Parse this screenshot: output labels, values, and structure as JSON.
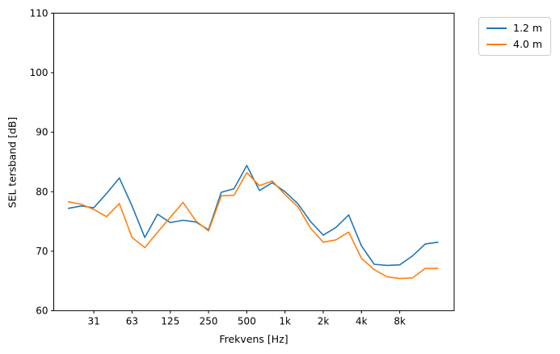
{
  "chart_data": {
    "type": "line",
    "title": "",
    "xlabel": "Frekvens [Hz]",
    "ylabel": "SEL tersband [dB]",
    "x_scale": "log-third-octave-bands",
    "grid": false,
    "legend_position": "outside-top-right",
    "background_color": "#ffffff",
    "axis_color": "#000000",
    "categories": [
      20,
      25,
      31.5,
      40,
      50,
      63,
      80,
      100,
      125,
      160,
      200,
      250,
      315,
      400,
      500,
      630,
      800,
      1000,
      1250,
      1600,
      2000,
      2500,
      3150,
      4000,
      5000,
      6300,
      8000,
      10000,
      12500,
      16000
    ],
    "series": [
      {
        "name": "1.2 m",
        "color": "#1f77b4",
        "values": [
          77.2,
          77.6,
          77.3,
          79.7,
          82.3,
          77.6,
          72.3,
          76.2,
          74.8,
          75.2,
          74.9,
          73.6,
          79.9,
          80.5,
          84.4,
          80.2,
          81.5,
          80.0,
          78.0,
          75.0,
          72.7,
          74.0,
          76.1,
          70.9,
          67.8,
          67.6,
          67.7,
          69.2,
          71.2,
          71.5
        ]
      },
      {
        "name": "4.0 m",
        "color": "#ff7f0e",
        "values": [
          78.3,
          77.9,
          77.0,
          75.8,
          78.0,
          72.3,
          70.6,
          73.2,
          75.7,
          78.2,
          75.1,
          73.4,
          79.3,
          79.4,
          83.2,
          81.0,
          81.8,
          79.5,
          77.5,
          73.9,
          71.5,
          71.9,
          73.2,
          68.8,
          66.9,
          65.7,
          65.4,
          65.5,
          67.1,
          67.1
        ]
      }
    ],
    "xticks": [
      {
        "label": "31",
        "index": 2
      },
      {
        "label": "63",
        "index": 5
      },
      {
        "label": "125",
        "index": 8
      },
      {
        "label": "250",
        "index": 11
      },
      {
        "label": "500",
        "index": 14
      },
      {
        "label": "1k",
        "index": 17
      },
      {
        "label": "2k",
        "index": 20
      },
      {
        "label": "4k",
        "index": 23
      },
      {
        "label": "8k",
        "index": 26
      }
    ],
    "yticks": [
      60,
      70,
      80,
      90,
      100,
      110
    ],
    "ylim": [
      60,
      110
    ]
  }
}
